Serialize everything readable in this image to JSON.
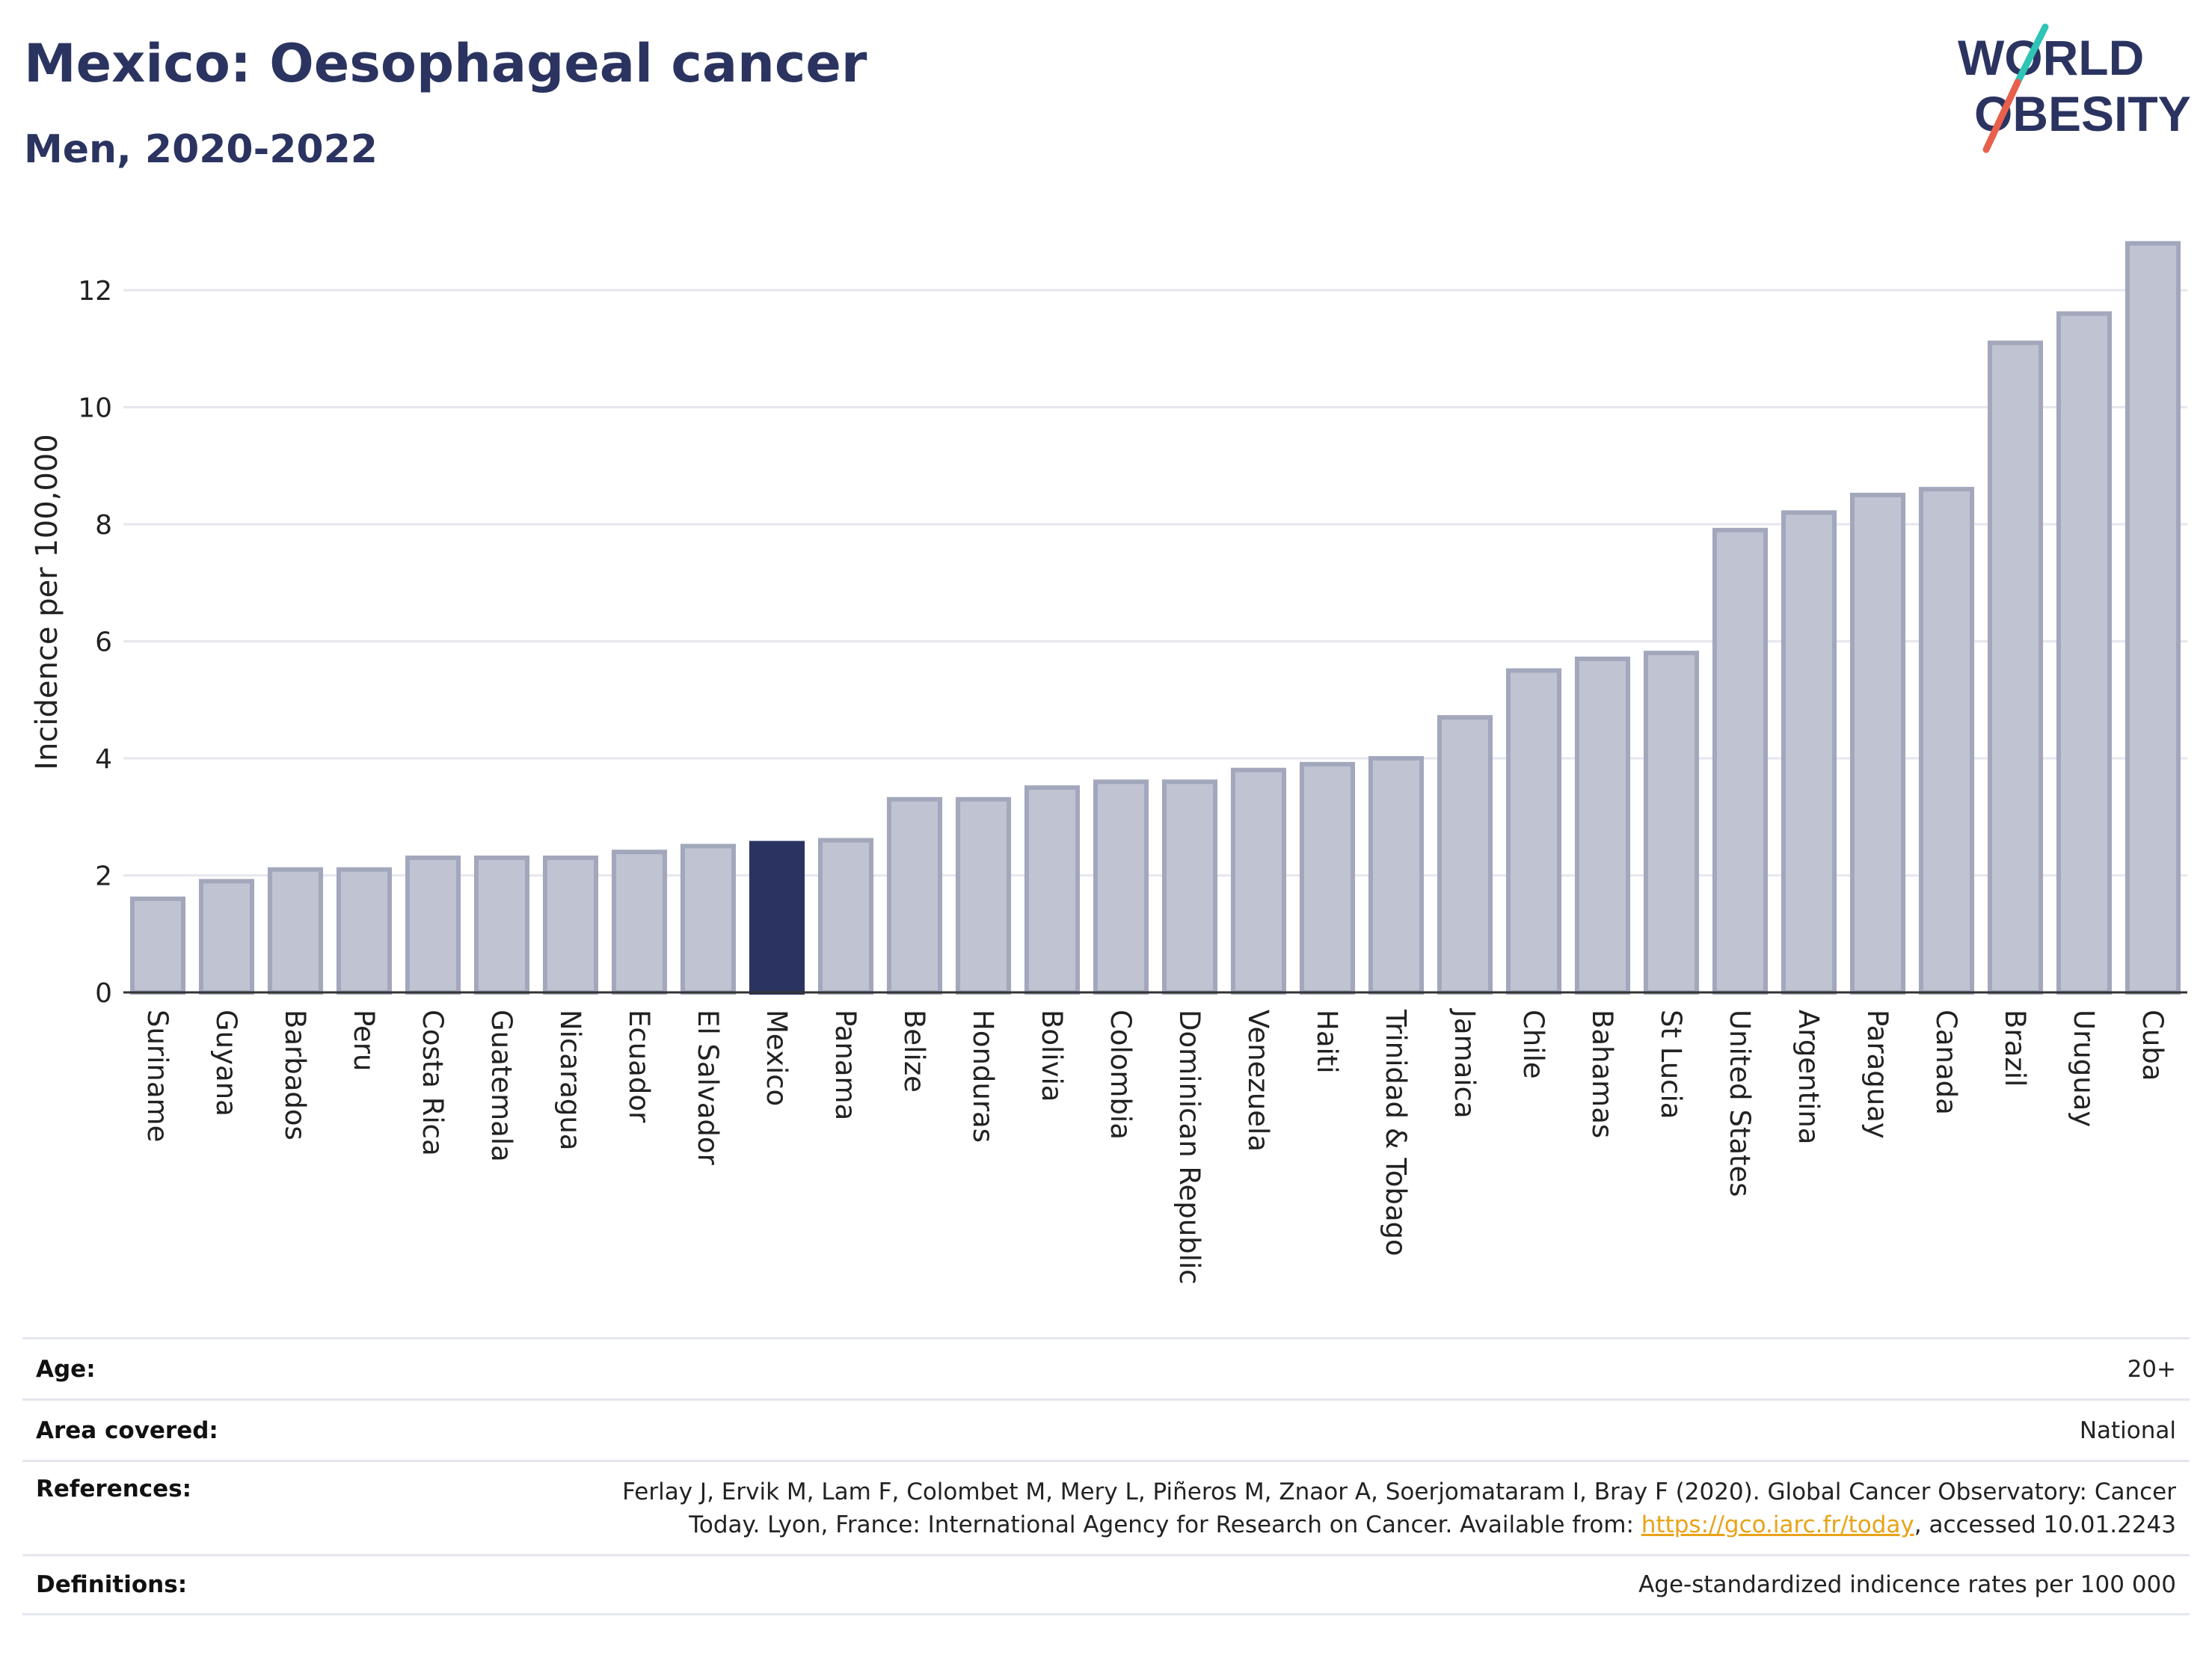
{
  "header": {
    "title": "Mexico: Oesophageal cancer",
    "subtitle": "Men, 2020-2022"
  },
  "logo": {
    "line1": "WORLD",
    "line2": "OBESITY"
  },
  "colors": {
    "accent": "#2b3460",
    "bar_default": "#c0c3d1",
    "bar_border": "#a2a7bc",
    "highlight": "#2b3460",
    "logo_teal": "#2ec4b6",
    "logo_red": "#e8604c",
    "link": "#e8a317"
  },
  "chart_data": {
    "type": "bar",
    "ylabel": "Incidence per 100,000",
    "ylim": [
      0,
      13
    ],
    "yticks": [
      0,
      2,
      4,
      6,
      8,
      10,
      12
    ],
    "grid": true,
    "highlight": "Mexico",
    "categories": [
      "Suriname",
      "Guyana",
      "Barbados",
      "Peru",
      "Costa Rica",
      "Guatemala",
      "Nicaragua",
      "Ecuador",
      "El Salvador",
      "Mexico",
      "Panama",
      "Belize",
      "Honduras",
      "Bolivia",
      "Colombia",
      "Dominican Republic",
      "Venezuela",
      "Haiti",
      "Trinidad & Tobago",
      "Jamaica",
      "Chile",
      "Bahamas",
      "St Lucia",
      "United States",
      "Argentina",
      "Paraguay",
      "Canada",
      "Brazil",
      "Uruguay",
      "Cuba"
    ],
    "values": [
      1.6,
      1.9,
      2.1,
      2.1,
      2.3,
      2.3,
      2.3,
      2.4,
      2.5,
      2.55,
      2.6,
      3.3,
      3.3,
      3.5,
      3.6,
      3.6,
      3.8,
      3.9,
      4.0,
      4.7,
      5.5,
      5.7,
      5.8,
      7.9,
      8.2,
      8.5,
      8.6,
      11.1,
      11.6,
      12.8
    ]
  },
  "meta": {
    "age_label": "Age:",
    "age_value": "20+",
    "area_label": "Area covered:",
    "area_value": "National",
    "references_label": "References:",
    "references_line1": "Ferlay J, Ervik M, Lam F, Colombet M, Mery L, Piñeros M, Znaor A, Soerjomataram I, Bray F (2020). Global Cancer Observatory: Cancer",
    "references_line2_pre": "Today. Lyon, France: International Agency for Research on Cancer. Available from: ",
    "references_link": "https://gco.iarc.fr/today",
    "references_line2_post": ", accessed 10.01.2243",
    "definitions_label": "Definitions:",
    "definitions_value": "Age-standardized indicence rates per 100 000"
  }
}
